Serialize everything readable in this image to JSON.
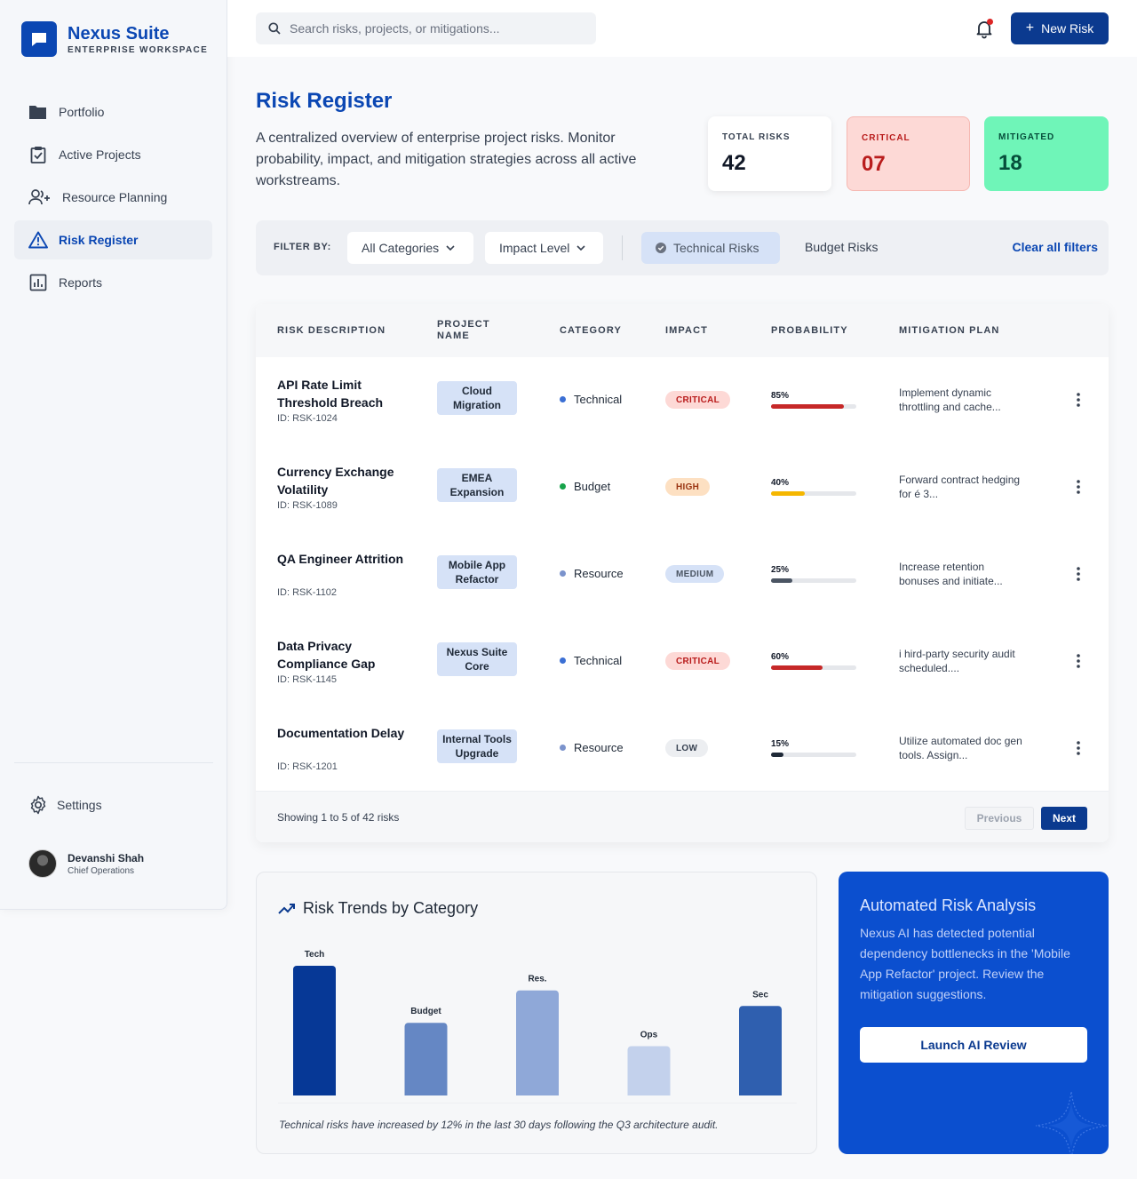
{
  "brand": {
    "name": "Nexus Suite",
    "subtitle": "ENTERPRISE WORKSPACE"
  },
  "sidebar": {
    "items": [
      {
        "label": "Portfolio",
        "icon": "folder-icon"
      },
      {
        "label": "Active Projects",
        "icon": "clipboard-check-icon"
      },
      {
        "label": "Resource Planning",
        "icon": "user-plus-icon"
      },
      {
        "label": "Risk Register",
        "icon": "warning-triangle-icon",
        "active": true
      },
      {
        "label": "Reports",
        "icon": "bar-chart-icon"
      }
    ],
    "settings_label": "Settings",
    "user": {
      "name": "Devanshi Shah",
      "role": "Chief Operations"
    }
  },
  "topbar": {
    "search_placeholder": "Search risks, projects, or mitigations...",
    "new_risk_label": "New Risk"
  },
  "header": {
    "title": "Risk Register",
    "description": "A centralized overview of enterprise project risks. Monitor probability, impact, and mitigation strategies across all active workstreams."
  },
  "stats": {
    "total": {
      "label": "TOTAL RISKS",
      "value": "42"
    },
    "critical": {
      "label": "CRITICAL",
      "value": "07"
    },
    "mitigated": {
      "label": "MITIGATED",
      "value": "18"
    }
  },
  "filters": {
    "label": "FILTER BY:",
    "category": "All Categories",
    "impact": "Impact Level",
    "active_chip": "Technical Risks",
    "chip": "Budget Risks",
    "clear": "Clear all filters"
  },
  "table": {
    "headers": {
      "desc": "RISK DESCRIPTION",
      "project_1": "PROJECT",
      "project_2": "NAME",
      "category": "CATEGORY",
      "impact": "IMPACT",
      "probability": "PROBABILITY",
      "mitigation": "MITIGATION PLAN"
    },
    "rows": [
      {
        "title": "API Rate Limit Threshold Breach",
        "id": "ID: RSK-1024",
        "project": "Cloud Migration",
        "category": "Technical",
        "cat_color": "#3b6fd4",
        "impact": "CRITICAL",
        "impact_bg": "#fdd9d6",
        "impact_fg": "#b91c1c",
        "prob_label": "85%",
        "prob": 0.85,
        "prob_color": "#c62828",
        "mitigation": "Implement dynamic throttling and cache..."
      },
      {
        "title": "Currency Exchange Volatility",
        "id": "ID: RSK-1089",
        "project": "EMEA Expansion",
        "category": "Budget",
        "cat_color": "#16a34a",
        "impact": "HIGH",
        "impact_bg": "#fde0c2",
        "impact_fg": "#9a3412",
        "prob_label": "40%",
        "prob": 0.4,
        "prob_color": "#f5b700",
        "mitigation": "Forward contract hedging for é 3..."
      },
      {
        "title": "QA Engineer Attrition",
        "id": "ID: RSK-1102",
        "project": "Mobile App Refactor",
        "category": "Resource",
        "cat_color": "#7b93cc",
        "impact": "MEDIUM",
        "impact_bg": "#d6e2f7",
        "impact_fg": "#4b5563",
        "prob_label": "25%",
        "prob": 0.25,
        "prob_color": "#4b5563",
        "mitigation": "Increase retention bonuses and initiate..."
      },
      {
        "title": "Data Privacy Compliance Gap",
        "id": "ID: RSK-1145",
        "project": "Nexus Suite Core",
        "category": "Technical",
        "cat_color": "#3b6fd4",
        "impact": "CRITICAL",
        "impact_bg": "#fdd9d6",
        "impact_fg": "#b91c1c",
        "prob_label": "60%",
        "prob": 0.6,
        "prob_color": "#c62828",
        "mitigation": "i hird-party security audit scheduled...."
      },
      {
        "title": "Documentation Delay",
        "id": "ID: RSK-1201",
        "project": "Internal Tools Upgrade",
        "category": "Resource",
        "cat_color": "#7b93cc",
        "impact": "LOW",
        "impact_bg": "#eceef1",
        "impact_fg": "#374151",
        "prob_label": "15%",
        "prob": 0.15,
        "prob_color": "#1f2937",
        "mitigation": "Utilize automated doc gen tools. Assign..."
      }
    ],
    "footer": {
      "showing": "Showing 1 to 5 of 42 risks",
      "prev": "Previous",
      "next": "Next"
    }
  },
  "chart_card": {
    "title": "Risk Trends by Category",
    "note": "Technical risks have increased by 12% in the last 30 days following the Q3 architecture audit."
  },
  "chart_data": {
    "type": "bar",
    "categories": [
      "Tech",
      "Budget",
      "Res.",
      "Ops",
      "Sec"
    ],
    "values": [
      100,
      56,
      81,
      38,
      69
    ],
    "colors": [
      "#063896",
      "#6587c4",
      "#8fa8d8",
      "#c3d1ec",
      "#2f5faf"
    ],
    "ylim": [
      0,
      100
    ],
    "grid": false,
    "legend": "none"
  },
  "ai_card": {
    "title": "Automated Risk Analysis",
    "text": "Nexus AI has detected potential dependency bottlenecks in the 'Mobile App Refactor' project. Review the mitigation suggestions.",
    "button": "Launch AI Review"
  }
}
